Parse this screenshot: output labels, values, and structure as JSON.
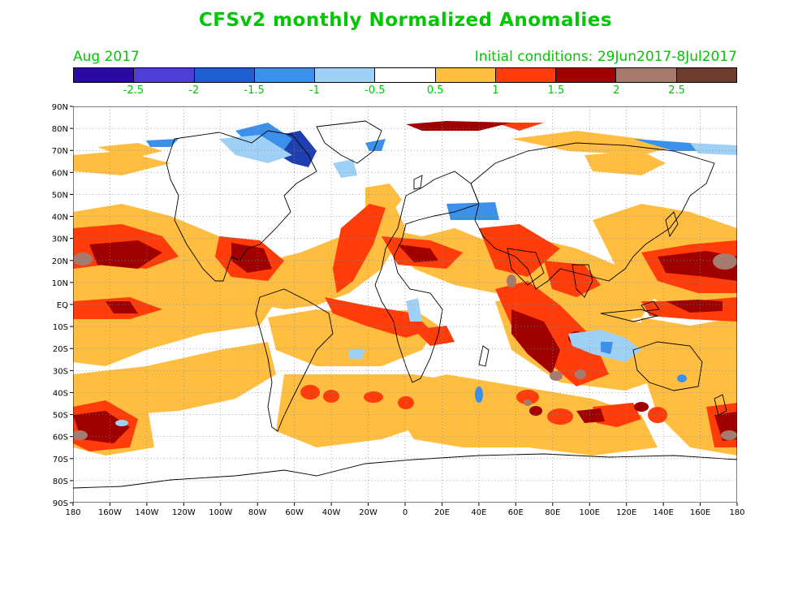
{
  "title": "CFSv2 monthly Normalized Anomalies",
  "month_label": "Aug 2017",
  "initial_conditions": "Initial conditions: 29Jun2017-8Jul2017",
  "colorbar": {
    "colors": [
      "#2a0aa0",
      "#4f3ed6",
      "#1f5fd0",
      "#3a90ea",
      "#9fd0f6",
      "#ffffff",
      "#ffbe40",
      "#ff3c0a",
      "#a00000",
      "#a67b6e",
      "#6e3c2d"
    ],
    "labels": [
      "-2.5",
      "-2",
      "-1.5",
      "-1",
      "-0.5",
      "0.5",
      "1",
      "1.5",
      "2",
      "2.5"
    ]
  },
  "axes": {
    "lat_labels": [
      "90N",
      "80N",
      "70N",
      "60N",
      "50N",
      "40N",
      "30N",
      "20N",
      "10N",
      "EQ",
      "10S",
      "20S",
      "30S",
      "40S",
      "50S",
      "60S",
      "70S",
      "80S",
      "90S"
    ],
    "lon_labels": [
      "180",
      "160W",
      "140W",
      "120W",
      "100W",
      "80W",
      "60W",
      "40W",
      "20W",
      "0",
      "20E",
      "40E",
      "60E",
      "80E",
      "100E",
      "120E",
      "140E",
      "160E",
      "180"
    ]
  },
  "map": {
    "grid": "dotted",
    "layers": [
      {
        "name": "orange-anomaly",
        "color": "#ffbe40"
      },
      {
        "name": "red-anomaly",
        "color": "#ff3c0a"
      },
      {
        "name": "darkred-anomaly",
        "color": "#a00000"
      },
      {
        "name": "brown-anomaly",
        "color": "#a67b6e"
      },
      {
        "name": "lightblue-anomaly",
        "color": "#9fd0f6"
      },
      {
        "name": "blue-anomaly",
        "color": "#3a90ea"
      },
      {
        "name": "deepblue-anomaly",
        "color": "#1f3fb0"
      }
    ]
  }
}
